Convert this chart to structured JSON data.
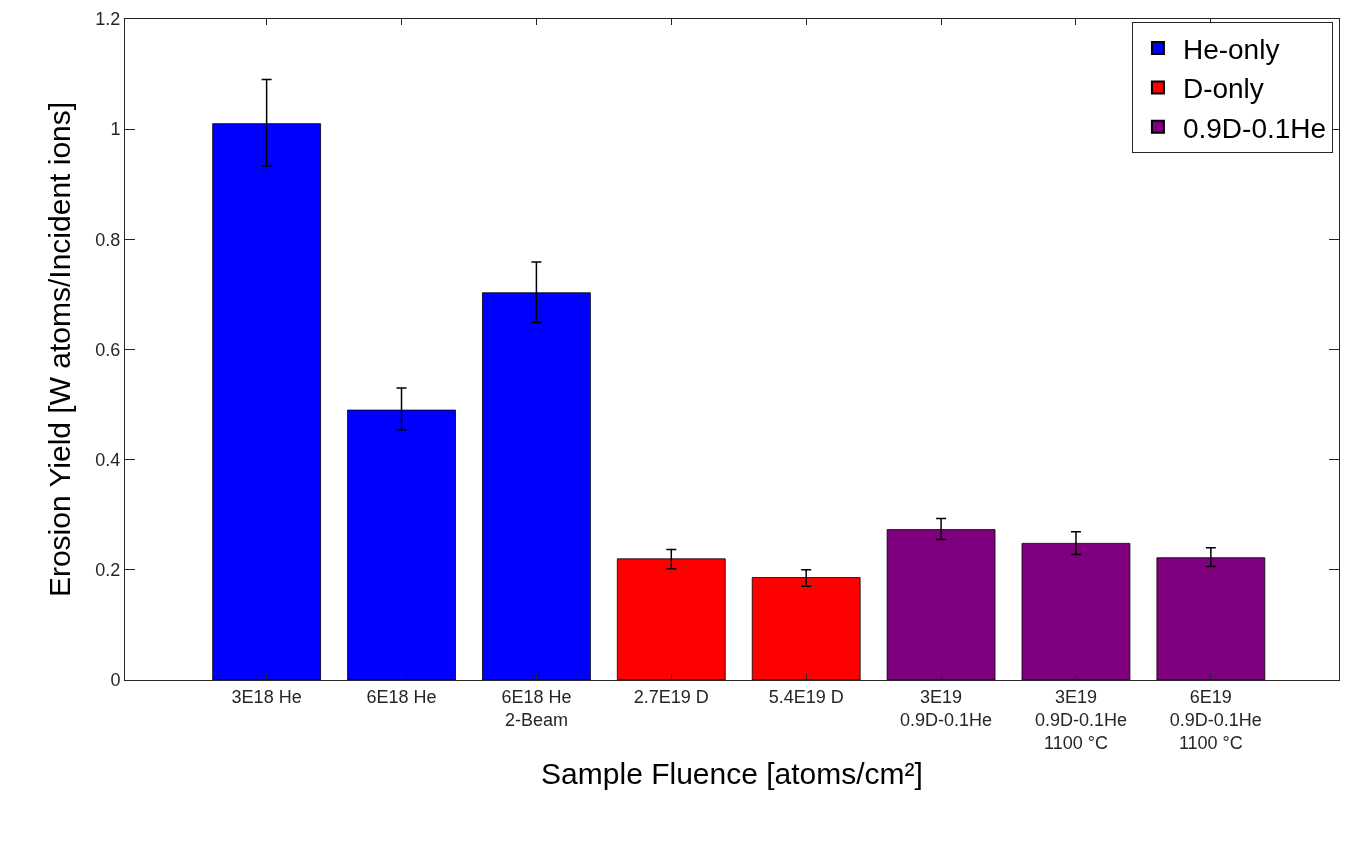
{
  "chart_data": {
    "type": "bar",
    "xlabel": "Sample Fluence [atoms/cm²]",
    "ylabel": "Erosion Yield [W atoms/Incident ions]",
    "categories": [
      "3E18 He",
      "6E18 He",
      "6E18 He\n2-Beam",
      "2.7E19 D",
      "5.4E19 D",
      "3E19\n  0.9D-0.1He",
      "3E19\n  0.9D-0.1He\n1100 °C",
      "6E19\n  0.9D-0.1He\n1100 °C"
    ],
    "series": [
      {
        "name": "He-only",
        "color": "#0000ff",
        "values": [
          1.01,
          0.49,
          0.703,
          null,
          null,
          null,
          null,
          null
        ],
        "errors": [
          [
            0.933,
            1.09
          ],
          [
            0.454,
            0.53
          ],
          [
            0.649,
            0.759
          ],
          null,
          null,
          null,
          null,
          null
        ]
      },
      {
        "name": "D-only",
        "color": "#ff0000",
        "values": [
          null,
          null,
          null,
          0.22,
          0.186,
          null,
          null,
          null
        ],
        "errors": [
          null,
          null,
          null,
          [
            0.202,
            0.237
          ],
          [
            0.17,
            0.2
          ],
          null,
          null,
          null
        ]
      },
      {
        "name": "0.9D-0.1He",
        "color": "#7f007f",
        "values": [
          null,
          null,
          null,
          null,
          null,
          0.273,
          0.248,
          0.222
        ],
        "errors": [
          null,
          null,
          null,
          null,
          null,
          [
            0.255,
            0.293
          ],
          [
            0.228,
            0.269
          ],
          [
            0.206,
            0.24
          ]
        ]
      }
    ],
    "ylim": [
      0,
      1.2
    ],
    "yticks": [
      0,
      0.2,
      0.4,
      0.6,
      0.8,
      1,
      1.2
    ],
    "legend": "top right"
  }
}
